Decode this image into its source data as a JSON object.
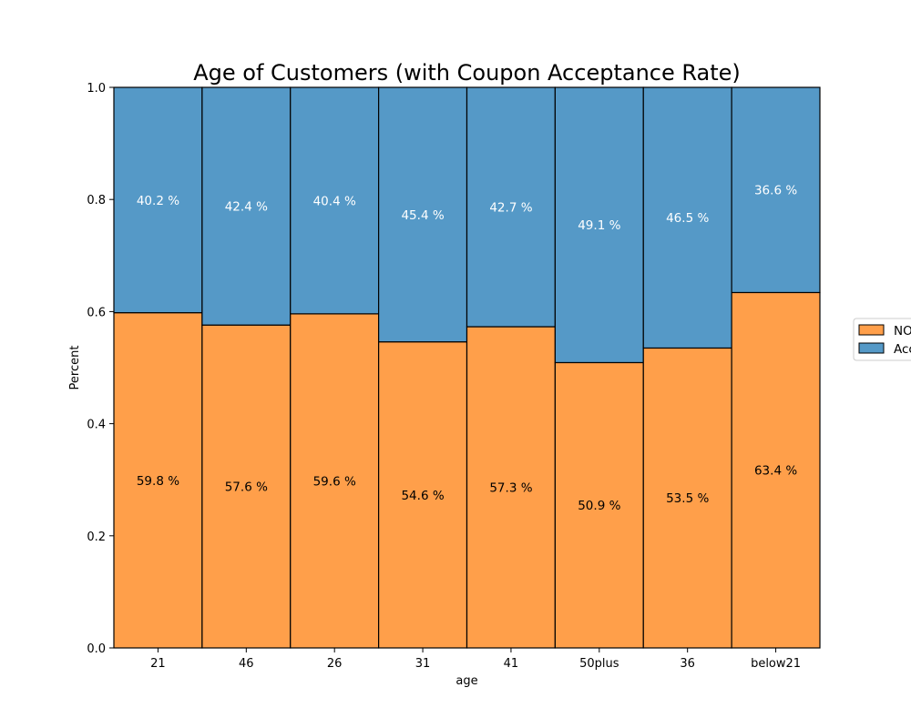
{
  "chart_data": {
    "type": "bar",
    "stacked": true,
    "normalized": true,
    "title": "Age of Customers (with Coupon Acceptance Rate)",
    "xlabel": "age",
    "ylabel": "Percent",
    "ylim": [
      0,
      1
    ],
    "yticks": [
      "0.0",
      "0.2",
      "0.4",
      "0.6",
      "0.8",
      "1.0"
    ],
    "categories": [
      "21",
      "46",
      "26",
      "31",
      "41",
      "50plus",
      "36",
      "below21"
    ],
    "series": [
      {
        "name": "NO",
        "color": "#ff9f4a",
        "values": [
          0.598,
          0.576,
          0.596,
          0.546,
          0.573,
          0.509,
          0.535,
          0.634
        ],
        "labels": [
          "59.8 %",
          "57.6 %",
          "59.6 %",
          "54.6 %",
          "57.3 %",
          "50.9 %",
          "53.5 %",
          "63.4 %"
        ],
        "label_color": "#000000"
      },
      {
        "name": "Accepted",
        "color": "#5599c7",
        "values": [
          0.402,
          0.424,
          0.404,
          0.454,
          0.427,
          0.491,
          0.465,
          0.366
        ],
        "labels": [
          "40.2 %",
          "42.4 %",
          "40.4 %",
          "45.4 %",
          "42.7 %",
          "49.1 %",
          "46.5 %",
          "36.6 %"
        ],
        "label_color": "#ffffff"
      }
    ],
    "legend": {
      "placement": "center-right",
      "visible_texts": [
        "NO",
        "Acc"
      ]
    },
    "grid": false
  }
}
